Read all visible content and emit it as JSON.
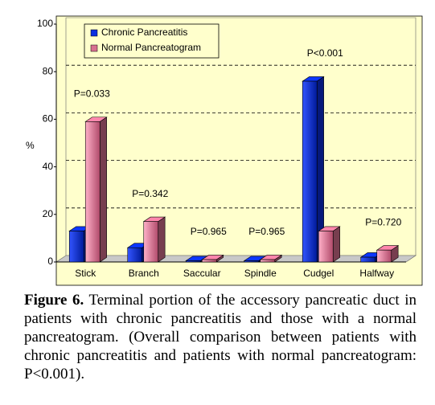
{
  "chart_data": {
    "type": "bar3d",
    "ylabel": "%",
    "categories": [
      "Stick",
      "Branch",
      "Saccular",
      "Spindle",
      "Cudgel",
      "Halfway"
    ],
    "series": [
      {
        "name": "Chronic Pancreatitis",
        "color": "#0a2ee0",
        "values": [
          13,
          6,
          0.5,
          0.5,
          76,
          2
        ]
      },
      {
        "name": "Normal Pancreatogram",
        "color": "#d8708f",
        "values": [
          59,
          17,
          1,
          1,
          13,
          5
        ]
      }
    ],
    "annotations": [
      "P=0.033",
      "P=0.342",
      "P=0.965",
      "P=0.965",
      "P<0.001",
      "P=0.720"
    ],
    "ylim": [
      0,
      100
    ],
    "yticks": [
      0,
      20,
      40,
      60,
      80,
      100
    ],
    "grid": true,
    "background": "#ffffcc"
  },
  "caption": {
    "label": "Figure 6.",
    "text": "Terminal portion of the accessory pancreatic duct in patients with chronic pancreatitis and those with a normal pancreatogram. (Overall comparison between patients with chronic pancreatitis and patients with normal pancreatogram: P<0.001)."
  }
}
